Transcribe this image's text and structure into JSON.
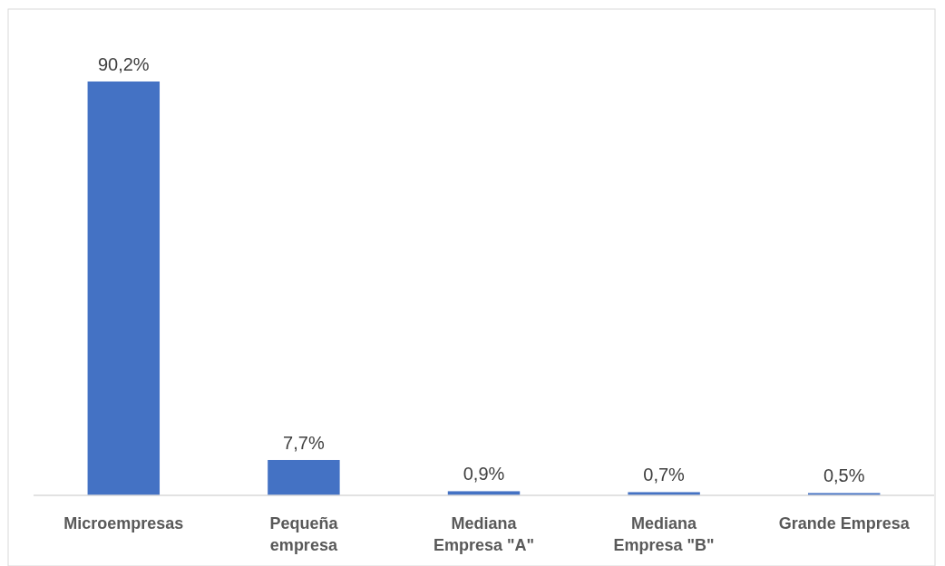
{
  "chart_data": {
    "type": "bar",
    "categories": [
      "Microempresas",
      "Pequeña empresa",
      "Mediana Empresa \"A\"",
      "Mediana Empresa \"B\"",
      "Grande Empresa"
    ],
    "values": [
      90.2,
      7.7,
      0.9,
      0.7,
      0.5
    ],
    "value_labels": [
      "90,2%",
      "7,7%",
      "0,9%",
      "0,7%",
      "0,5%"
    ],
    "color": "#4472c4"
  }
}
